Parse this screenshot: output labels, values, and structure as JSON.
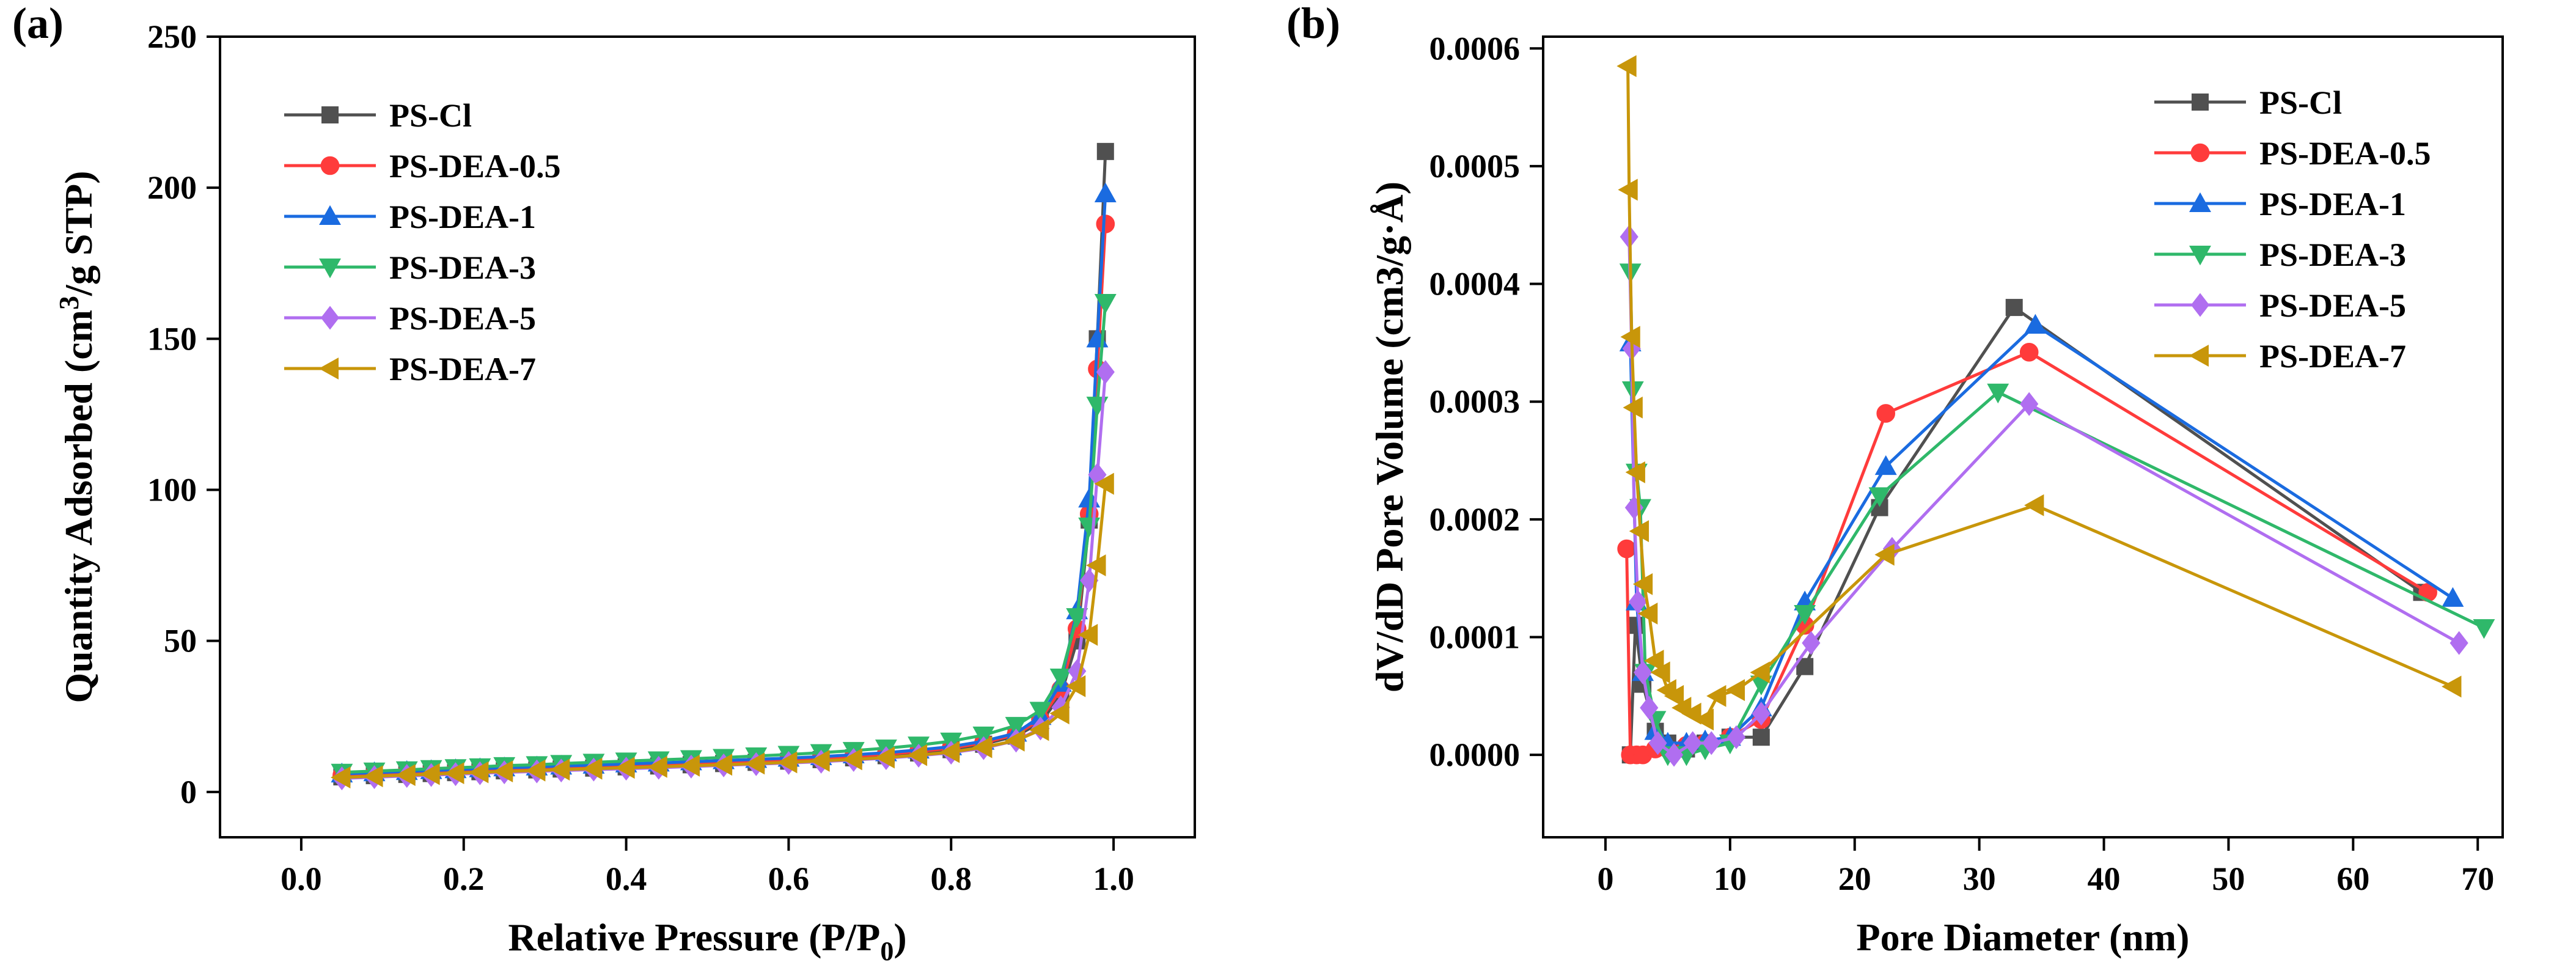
{
  "figure": {
    "panel_labels": [
      "(a)",
      "(b)"
    ]
  },
  "chart_data": [
    {
      "type": "scatter",
      "panel": "(a)",
      "xlabel": "Relative Pressure (P/P",
      "xlabel_sub": "0",
      "xlabel_tail": ")",
      "ylabel": "Quantity Adsorbed (cm",
      "ylabel_sup": "3",
      "ylabel_tail": "/g STP)",
      "xlim": [
        -0.1,
        1.1
      ],
      "ylim": [
        -15,
        250
      ],
      "xticks": [
        0.0,
        0.2,
        0.4,
        0.6,
        0.8,
        1.0
      ],
      "xtick_labels": [
        "0.0",
        "0.2",
        "0.4",
        "0.6",
        "0.8",
        "1.0"
      ],
      "yticks": [
        0,
        50,
        100,
        150,
        200,
        250
      ],
      "ytick_labels": [
        "0",
        "50",
        "100",
        "150",
        "200",
        "250"
      ],
      "grid": false,
      "legend_position": "top-left",
      "series": [
        {
          "name": "PS-Cl",
          "color": "#505050",
          "marker": "square",
          "x": [
            0.05,
            0.09,
            0.13,
            0.16,
            0.19,
            0.22,
            0.25,
            0.29,
            0.32,
            0.36,
            0.4,
            0.44,
            0.48,
            0.52,
            0.56,
            0.6,
            0.64,
            0.68,
            0.72,
            0.76,
            0.8,
            0.84,
            0.88,
            0.91,
            0.935,
            0.955,
            0.97,
            0.98,
            0.99
          ],
          "y": [
            5,
            5.4,
            5.8,
            6.1,
            6.4,
            6.7,
            7.0,
            7.3,
            7.6,
            7.9,
            8.3,
            8.6,
            9.0,
            9.4,
            9.8,
            10.2,
            10.7,
            11.3,
            12.0,
            12.9,
            14.0,
            15.8,
            18.5,
            23,
            32,
            50,
            90,
            150,
            212
          ]
        },
        {
          "name": "PS-DEA-0.5",
          "color": "#ff3b3b",
          "marker": "circle",
          "x": [
            0.05,
            0.09,
            0.13,
            0.16,
            0.19,
            0.22,
            0.25,
            0.29,
            0.32,
            0.36,
            0.4,
            0.44,
            0.48,
            0.52,
            0.56,
            0.6,
            0.64,
            0.68,
            0.72,
            0.76,
            0.8,
            0.84,
            0.88,
            0.91,
            0.935,
            0.955,
            0.97,
            0.98,
            0.99
          ],
          "y": [
            5.5,
            5.9,
            6.3,
            6.6,
            6.9,
            7.2,
            7.5,
            7.8,
            8.1,
            8.4,
            8.8,
            9.1,
            9.5,
            9.9,
            10.3,
            10.7,
            11.2,
            11.8,
            12.5,
            13.4,
            14.5,
            16.3,
            19,
            24,
            34,
            54,
            92,
            140,
            188
          ]
        },
        {
          "name": "PS-DEA-1",
          "color": "#1a6be0",
          "marker": "triangle-up",
          "x": [
            0.05,
            0.09,
            0.13,
            0.16,
            0.19,
            0.22,
            0.25,
            0.29,
            0.32,
            0.36,
            0.4,
            0.44,
            0.48,
            0.52,
            0.56,
            0.6,
            0.64,
            0.68,
            0.72,
            0.76,
            0.8,
            0.84,
            0.88,
            0.91,
            0.935,
            0.955,
            0.97,
            0.98,
            0.99
          ],
          "y": [
            6,
            6.4,
            6.8,
            7.1,
            7.4,
            7.7,
            8.0,
            8.3,
            8.6,
            8.9,
            9.3,
            9.6,
            10.0,
            10.4,
            10.8,
            11.2,
            11.7,
            12.3,
            13.0,
            13.9,
            15.0,
            16.8,
            19.5,
            25,
            36,
            60,
            97,
            150,
            198
          ]
        },
        {
          "name": "PS-DEA-3",
          "color": "#2fb86a",
          "marker": "triangle-down",
          "x": [
            0.05,
            0.09,
            0.13,
            0.16,
            0.19,
            0.22,
            0.25,
            0.29,
            0.32,
            0.36,
            0.4,
            0.44,
            0.48,
            0.52,
            0.56,
            0.6,
            0.64,
            0.68,
            0.72,
            0.76,
            0.8,
            0.84,
            0.88,
            0.91,
            0.935,
            0.955,
            0.97,
            0.98,
            0.99
          ],
          "y": [
            6.5,
            6.9,
            7.3,
            7.7,
            8.0,
            8.3,
            8.7,
            9.0,
            9.4,
            9.8,
            10.2,
            10.6,
            11.0,
            11.4,
            11.9,
            12.4,
            13.0,
            13.7,
            14.5,
            15.5,
            16.8,
            18.8,
            22,
            27,
            38,
            58,
            88,
            128,
            162
          ]
        },
        {
          "name": "PS-DEA-5",
          "color": "#b06ef0",
          "marker": "diamond",
          "x": [
            0.05,
            0.09,
            0.13,
            0.16,
            0.19,
            0.22,
            0.25,
            0.29,
            0.32,
            0.36,
            0.4,
            0.44,
            0.48,
            0.52,
            0.56,
            0.6,
            0.64,
            0.68,
            0.72,
            0.76,
            0.8,
            0.84,
            0.88,
            0.91,
            0.935,
            0.955,
            0.97,
            0.98,
            0.99
          ],
          "y": [
            4.5,
            4.9,
            5.3,
            5.6,
            5.9,
            6.2,
            6.5,
            6.8,
            7.1,
            7.4,
            7.7,
            8.0,
            8.4,
            8.8,
            9.2,
            9.6,
            10.0,
            10.6,
            11.2,
            12.0,
            13.0,
            14.5,
            17,
            21,
            28,
            40,
            70,
            105,
            139
          ]
        },
        {
          "name": "PS-DEA-7",
          "color": "#c8960a",
          "marker": "triangle-left",
          "x": [
            0.05,
            0.09,
            0.13,
            0.16,
            0.19,
            0.22,
            0.25,
            0.29,
            0.32,
            0.36,
            0.4,
            0.44,
            0.48,
            0.52,
            0.56,
            0.6,
            0.64,
            0.68,
            0.72,
            0.76,
            0.8,
            0.84,
            0.88,
            0.91,
            0.935,
            0.955,
            0.97,
            0.98,
            0.99
          ],
          "y": [
            4.8,
            5.2,
            5.6,
            5.9,
            6.2,
            6.5,
            6.8,
            7.1,
            7.4,
            7.7,
            8.0,
            8.3,
            8.7,
            9.0,
            9.4,
            9.8,
            10.3,
            10.8,
            11.4,
            12.2,
            13.2,
            14.8,
            17,
            20.5,
            26,
            35,
            52,
            75,
            102
          ]
        }
      ]
    },
    {
      "type": "line",
      "panel": "(b)",
      "xlabel": "Pore Diameter (nm)",
      "ylabel": "dV/dD Pore Volume (cm3/g·Å)",
      "xlim": [
        -5,
        72
      ],
      "ylim": [
        -7e-05,
        0.00061
      ],
      "xticks": [
        0,
        10,
        20,
        30,
        40,
        50,
        60,
        70
      ],
      "xtick_labels": [
        "0",
        "10",
        "20",
        "30",
        "40",
        "50",
        "60",
        "70"
      ],
      "yticks": [
        0.0,
        0.0001,
        0.0002,
        0.0003,
        0.0004,
        0.0005,
        0.0006
      ],
      "ytick_labels": [
        "0.0000",
        "0.0001",
        "0.0002",
        "0.0003",
        "0.0004",
        "0.0005",
        "0.0006"
      ],
      "grid": false,
      "legend_position": "top-right",
      "series": [
        {
          "name": "PS-Cl",
          "color": "#505050",
          "marker": "square",
          "x": [
            2.0,
            2.4,
            3.0,
            4.0,
            5.0,
            6.5,
            8.0,
            10.0,
            12.5,
            16.0,
            22.0,
            32.8,
            65.5
          ],
          "y": [
            0.0,
            0.00011,
            6e-05,
            2e-05,
            1e-05,
            5e-06,
            1e-05,
            1.5e-05,
            1.5e-05,
            7.5e-05,
            0.00021,
            0.00038,
            0.000138
          ]
        },
        {
          "name": "PS-DEA-0.5",
          "color": "#ff3b3b",
          "marker": "circle",
          "x": [
            1.7,
            2.0,
            2.5,
            3.0,
            4.0,
            5.0,
            6.5,
            8.0,
            10.0,
            12.5,
            16.0,
            22.5,
            34.0,
            66.0
          ],
          "y": [
            0.000175,
            0.0,
            0.0,
            0.0,
            5e-06,
            5e-06,
            8e-06,
            1e-05,
            1.5e-05,
            3e-05,
            0.00011,
            0.00029,
            0.000342,
            0.000138
          ]
        },
        {
          "name": "PS-DEA-1",
          "color": "#1a6be0",
          "marker": "triangle-up",
          "x": [
            2.0,
            2.5,
            3.0,
            4.0,
            5.0,
            6.5,
            8.0,
            10.0,
            12.5,
            16.0,
            22.5,
            34.5,
            68.0
          ],
          "y": [
            0.00035,
            0.00013,
            7e-05,
            2e-05,
            1e-05,
            1e-05,
            1.2e-05,
            1.5e-05,
            4e-05,
            0.00013,
            0.000245,
            0.000365,
            0.000133
          ]
        },
        {
          "name": "PS-DEA-3",
          "color": "#2fb86a",
          "marker": "triangle-down",
          "x": [
            2.0,
            2.2,
            2.5,
            2.8,
            3.2,
            4.0,
            5.0,
            6.5,
            8.0,
            10.0,
            12.5,
            16.0,
            22.0,
            31.5,
            70.5
          ],
          "y": [
            0.00041,
            0.00031,
            0.00024,
            0.00021,
            7e-05,
            3e-05,
            0.0,
            0.0,
            5e-06,
            1e-05,
            6e-05,
            0.00012,
            0.00022,
            0.000308,
            0.000108
          ]
        },
        {
          "name": "PS-DEA-5",
          "color": "#b06ef0",
          "marker": "diamond",
          "x": [
            1.9,
            2.1,
            2.3,
            2.6,
            3.0,
            3.5,
            4.2,
            5.5,
            7.0,
            8.5,
            10.5,
            12.5,
            16.5,
            23.0,
            34.0,
            68.5
          ],
          "y": [
            0.00044,
            0.000345,
            0.00021,
            0.00013,
            7e-05,
            4e-05,
            1e-05,
            0.0,
            1e-05,
            1e-05,
            1.5e-05,
            3.5e-05,
            9.5e-05,
            0.000175,
            0.000298,
            9.5e-05
          ]
        },
        {
          "name": "PS-DEA-7",
          "color": "#c8960a",
          "marker": "triangle-left",
          "x": [
            1.8,
            1.9,
            2.1,
            2.3,
            2.5,
            2.8,
            3.1,
            3.5,
            4.0,
            4.5,
            5.0,
            5.6,
            6.2,
            7.0,
            8.0,
            9.0,
            10.5,
            12.5,
            22.5,
            34.5,
            68.0
          ],
          "y": [
            0.000585,
            0.00048,
            0.000355,
            0.000295,
            0.00024,
            0.00019,
            0.000145,
            0.00012,
            8e-05,
            7e-05,
            5.5e-05,
            5e-05,
            4e-05,
            3.5e-05,
            3e-05,
            5e-05,
            5.5e-05,
            7e-05,
            0.00017,
            0.000212,
            5.8e-05
          ]
        }
      ]
    }
  ]
}
